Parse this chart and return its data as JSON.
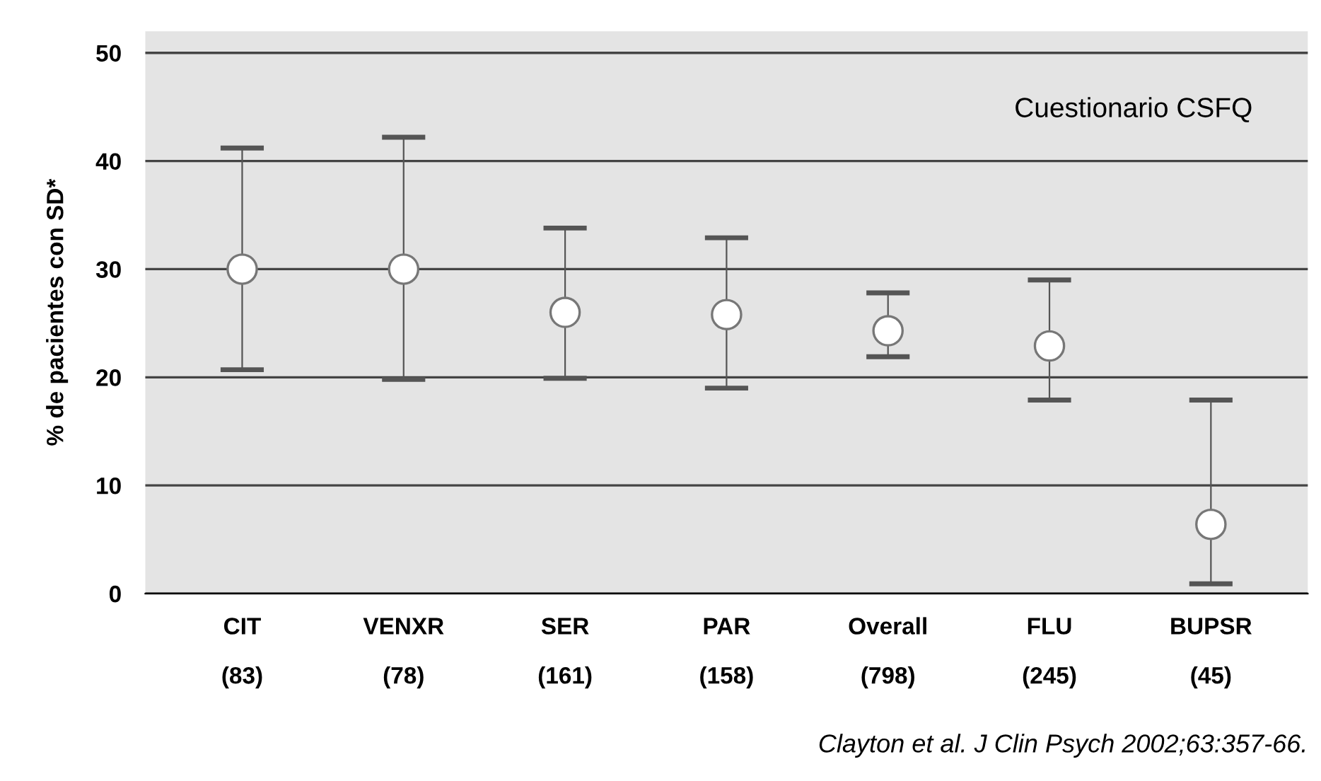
{
  "chart_data": {
    "type": "scatter",
    "ylabel": "% de pacientes con SD*",
    "categories": [
      "CIT\n(83)",
      "VENXR\n(78)",
      "SER\n(161)",
      "PAR\n(158)",
      "Overall\n(798)",
      "FLU\n(245)",
      "BUPSR\n(45)"
    ],
    "series": [
      {
        "color": "#ffffff",
        "values": [
          30,
          30,
          26,
          25.8,
          24.3,
          22.9,
          6.4
        ],
        "errors": [
          [
            20.7,
            41.2
          ],
          [
            19.8,
            42.2
          ],
          [
            19.9,
            33.8
          ],
          [
            19,
            32.9
          ],
          [
            21.9,
            27.8
          ],
          [
            17.9,
            29
          ],
          [
            0.9,
            17.9
          ]
        ]
      }
    ],
    "ylim": [
      0,
      52
    ],
    "yticks": [
      0,
      10,
      20,
      30,
      40,
      50
    ],
    "grid": "y",
    "marker": "circle",
    "annotations": [
      "Cuestionario CSFQ",
      "Clayton et al. J Clin Psych 2002;63:357-66."
    ]
  }
}
